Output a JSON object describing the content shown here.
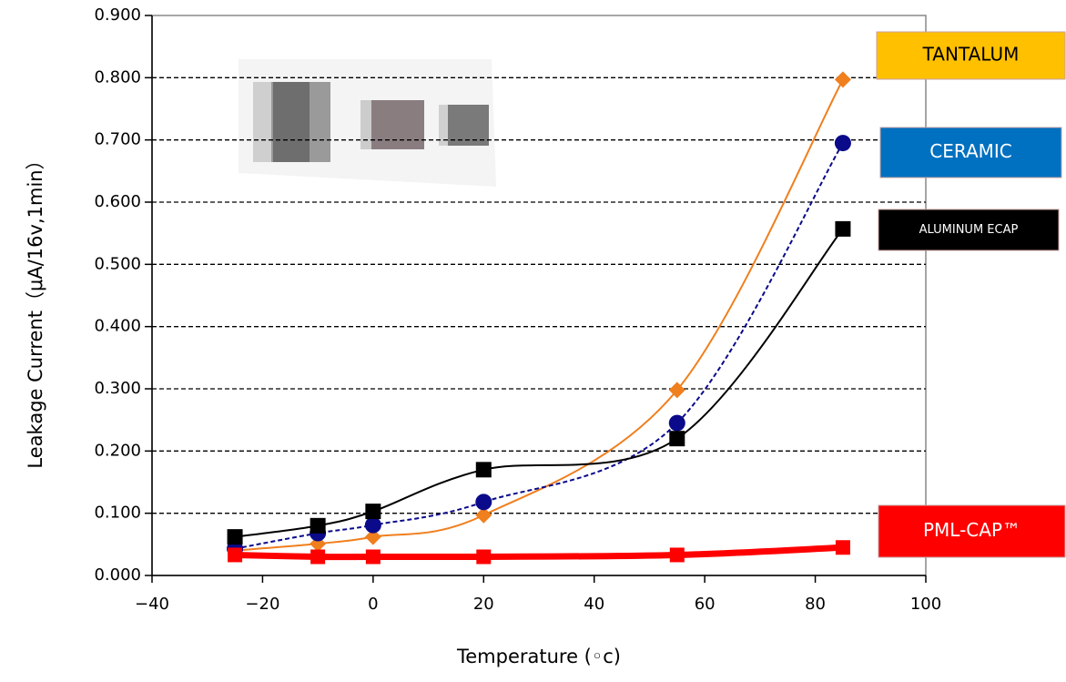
{
  "chart_data": {
    "type": "line",
    "y_label": "Leakage Current（μA/16v,1min）",
    "x_label": "Temperature (◦c)",
    "x": [
      -25,
      -10,
      0,
      20,
      55,
      85
    ],
    "series": [
      {
        "name": "TANTALUM",
        "color": "#f07f1e",
        "label_color": "#ffc000",
        "marker": "diamond",
        "dash": false,
        "values": [
          0.04,
          0.051,
          0.062,
          0.097,
          0.298,
          0.797
        ]
      },
      {
        "name": "CERAMIC",
        "color": "#0a0a8a",
        "label_color": "#0070c0",
        "marker": "circle",
        "dash": true,
        "values": [
          0.043,
          0.068,
          0.081,
          0.118,
          0.245,
          0.695
        ]
      },
      {
        "name": "ALUMINUM ECAP",
        "color": "#000000",
        "label_color": "#000000",
        "marker": "square",
        "dash": false,
        "values": [
          0.062,
          0.08,
          0.103,
          0.17,
          0.22,
          0.557
        ]
      },
      {
        "name": "PML-CAP™",
        "color": "#ff0000",
        "label_color": "#ff0000",
        "marker": "square",
        "dash": false,
        "values": [
          0.033,
          0.03,
          0.03,
          0.03,
          0.033,
          0.045
        ]
      }
    ],
    "xlim": [
      -40,
      100
    ],
    "xticks": [
      {
        "value": -40,
        "label": "−40"
      },
      {
        "value": -20,
        "label": "−20"
      },
      0,
      20,
      40,
      60,
      80,
      100
    ],
    "ylim": [
      0,
      0.9
    ],
    "yticks": [
      {
        "value": 0,
        "label": "0.000"
      },
      {
        "value": 0.1,
        "label": "0.100"
      },
      {
        "value": 0.2,
        "label": "0.200"
      },
      {
        "value": 0.3,
        "label": "0.300"
      },
      {
        "value": 0.4,
        "label": "0.400"
      },
      {
        "value": 0.5,
        "label": "0.500"
      },
      {
        "value": 0.6,
        "label": "0.600"
      },
      {
        "value": 0.7,
        "label": "0.700"
      },
      {
        "value": 0.8,
        "label": "0.800"
      },
      {
        "value": 0.9,
        "label": "0.900"
      }
    ],
    "grid": true
  }
}
